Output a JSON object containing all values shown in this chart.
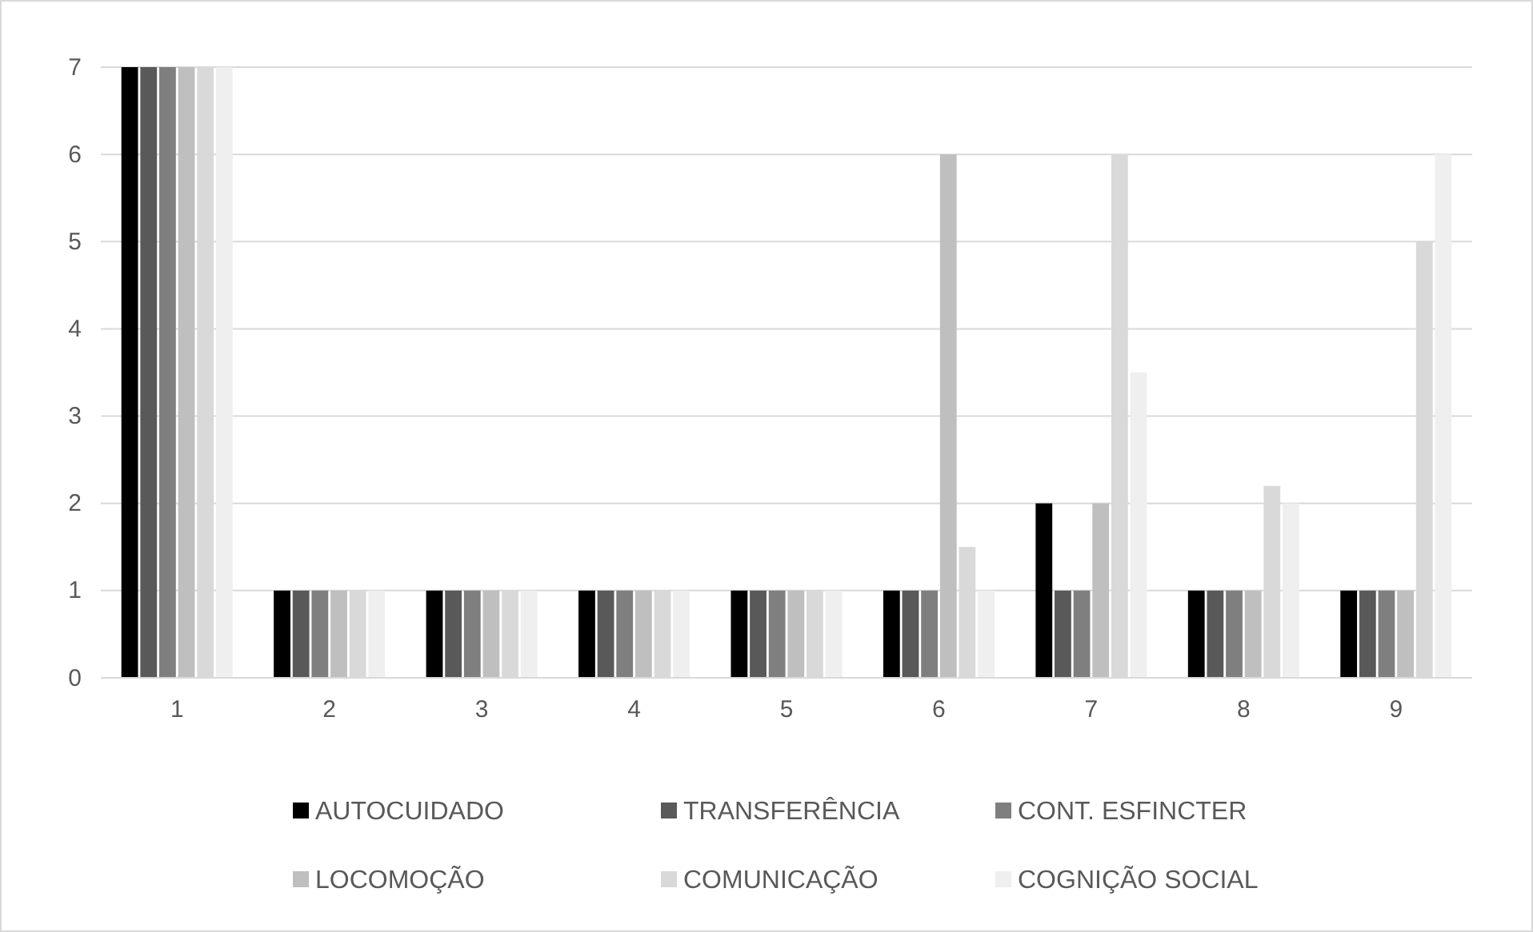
{
  "chart_data": {
    "type": "bar",
    "categories": [
      "1",
      "2",
      "3",
      "4",
      "5",
      "6",
      "7",
      "8",
      "9"
    ],
    "series": [
      {
        "name": "AUTOCUIDADO",
        "color": "#000000",
        "values": [
          7,
          1,
          1,
          1,
          1,
          1,
          2,
          1,
          1
        ]
      },
      {
        "name": "TRANSFERÊNCIA",
        "color": "#595959",
        "values": [
          7,
          1,
          1,
          1,
          1,
          1,
          1,
          1,
          1
        ]
      },
      {
        "name": "CONT. ESFINCTER",
        "color": "#7f7f7f",
        "values": [
          7,
          1,
          1,
          1,
          1,
          1,
          1,
          1,
          1
        ]
      },
      {
        "name": "LOCOMOÇÃO",
        "color": "#bfbfbf",
        "values": [
          7,
          1,
          1,
          1,
          1,
          6,
          2,
          1,
          1
        ]
      },
      {
        "name": "COMUNICAÇÃO",
        "color": "#d9d9d9",
        "values": [
          7,
          1,
          1,
          1,
          1,
          1.5,
          6,
          2.2,
          5
        ]
      },
      {
        "name": "COGNIÇÃO SOCIAL",
        "color": "#efefef",
        "values": [
          7,
          1,
          1,
          1,
          1,
          1,
          3.5,
          2,
          6
        ]
      }
    ],
    "ylim": [
      0,
      7
    ],
    "yticks": [
      0,
      1,
      2,
      3,
      4,
      5,
      6,
      7
    ],
    "grid": "y",
    "legend": "bottom"
  }
}
